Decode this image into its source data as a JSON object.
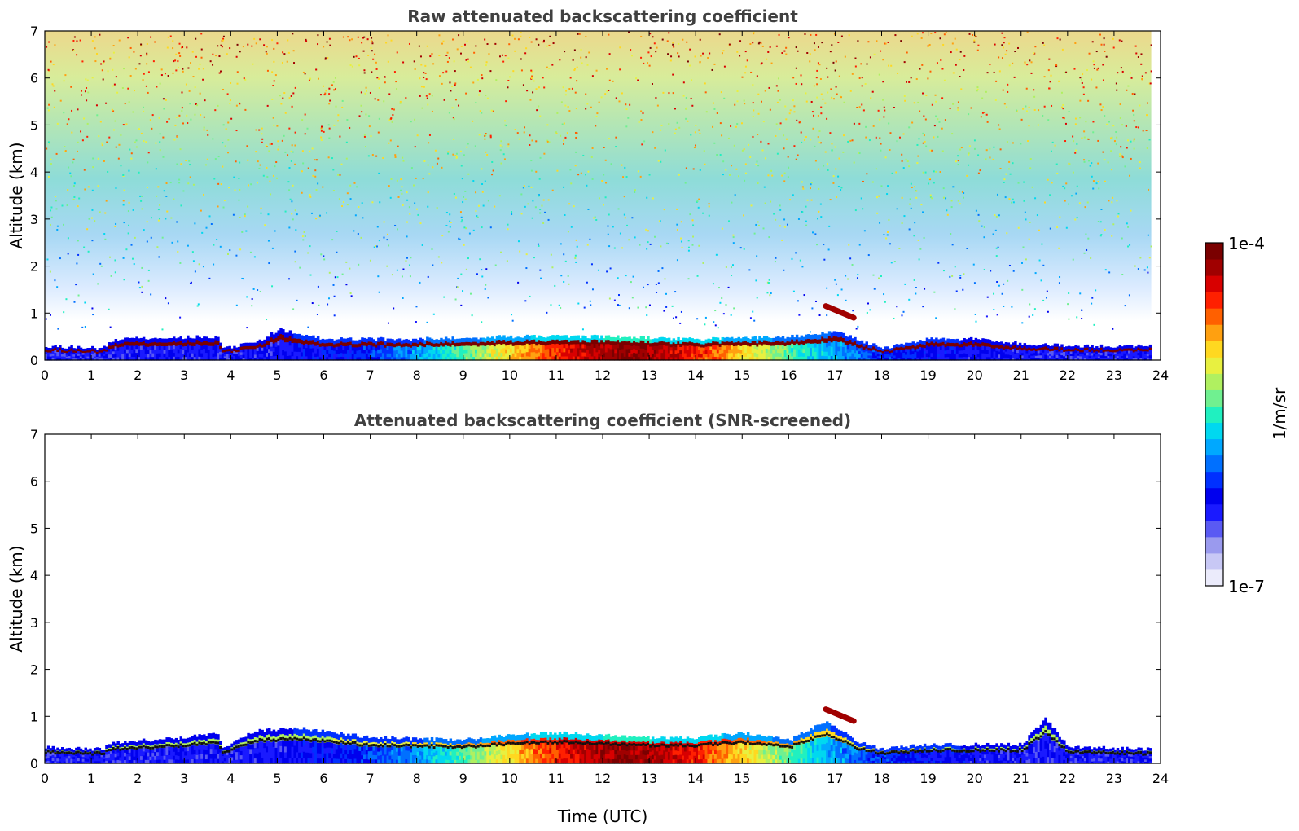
{
  "chart_data": [
    {
      "type": "heatmap",
      "title": "Raw attenuated backscattering coefficient",
      "xlabel": "",
      "ylabel": "Altitude (km)",
      "xlim": [
        0,
        24
      ],
      "ylim": [
        0,
        7
      ],
      "xticks": [
        0,
        1,
        2,
        3,
        4,
        5,
        6,
        7,
        8,
        9,
        10,
        11,
        12,
        13,
        14,
        15,
        16,
        17,
        18,
        19,
        20,
        21,
        22,
        23,
        24
      ],
      "yticks": [
        0,
        1,
        2,
        3,
        4,
        5,
        6,
        7
      ],
      "data_end_time": 23.8,
      "description_values": {
        "boundary_layer_top_km": [
          [
            0,
            0.3
          ],
          [
            1.2,
            0.25
          ],
          [
            1.5,
            0.45
          ],
          [
            3.7,
            0.5
          ],
          [
            3.8,
            0.25
          ],
          [
            4.6,
            0.4
          ],
          [
            5,
            0.65
          ],
          [
            6,
            0.45
          ],
          [
            8,
            0.45
          ],
          [
            10,
            0.5
          ],
          [
            12,
            0.5
          ],
          [
            14,
            0.45
          ],
          [
            16,
            0.5
          ],
          [
            17,
            0.6
          ],
          [
            18,
            0.25
          ],
          [
            19,
            0.45
          ],
          [
            20,
            0.45
          ],
          [
            21,
            0.35
          ],
          [
            22,
            0.3
          ],
          [
            23.8,
            0.3
          ]
        ],
        "elevated_layer": {
          "x_start": 16.8,
          "x_end": 17.4,
          "alt_start_km": 1.15,
          "alt_end_km": 0.9
        }
      }
    },
    {
      "type": "heatmap",
      "title": "Attenuated backscattering coefficient (SNR-screened)",
      "xlabel": "Time (UTC)",
      "ylabel": "Altitude (km)",
      "xlim": [
        0,
        24
      ],
      "ylim": [
        0,
        7
      ],
      "xticks": [
        0,
        1,
        2,
        3,
        4,
        5,
        6,
        7,
        8,
        9,
        10,
        11,
        12,
        13,
        14,
        15,
        16,
        17,
        18,
        19,
        20,
        21,
        22,
        23,
        24
      ],
      "yticks": [
        0,
        1,
        2,
        3,
        4,
        5,
        6,
        7
      ],
      "data_end_time": 23.8,
      "description_values": {
        "boundary_layer_top_km": [
          [
            0,
            0.35
          ],
          [
            1.2,
            0.3
          ],
          [
            1.5,
            0.45
          ],
          [
            3,
            0.55
          ],
          [
            3.7,
            0.65
          ],
          [
            3.8,
            0.3
          ],
          [
            4.5,
            0.7
          ],
          [
            5.5,
            0.75
          ],
          [
            7,
            0.55
          ],
          [
            9,
            0.5
          ],
          [
            10,
            0.6
          ],
          [
            11,
            0.65
          ],
          [
            12,
            0.6
          ],
          [
            13,
            0.55
          ],
          [
            14,
            0.55
          ],
          [
            15,
            0.65
          ],
          [
            16,
            0.5
          ],
          [
            16.8,
            0.9
          ],
          [
            17.5,
            0.45
          ],
          [
            18,
            0.3
          ],
          [
            19,
            0.4
          ],
          [
            21,
            0.4
          ],
          [
            21.5,
            0.95
          ],
          [
            22,
            0.35
          ],
          [
            23.8,
            0.3
          ]
        ]
      }
    }
  ],
  "colorbar": {
    "label": "1/m/sr",
    "max_label": "1e-4",
    "min_label": "1e-7",
    "colors": [
      "#ebebfb",
      "#c8c8f5",
      "#9a9aee",
      "#5a5af3",
      "#1a1aff",
      "#0000ee",
      "#0030ff",
      "#0070ff",
      "#00a8ff",
      "#00d8f0",
      "#20f0c0",
      "#70f090",
      "#b0f060",
      "#e8f040",
      "#ffd820",
      "#ffa010",
      "#ff6000",
      "#ff2000",
      "#d80000",
      "#a00000",
      "#7a0000"
    ]
  }
}
